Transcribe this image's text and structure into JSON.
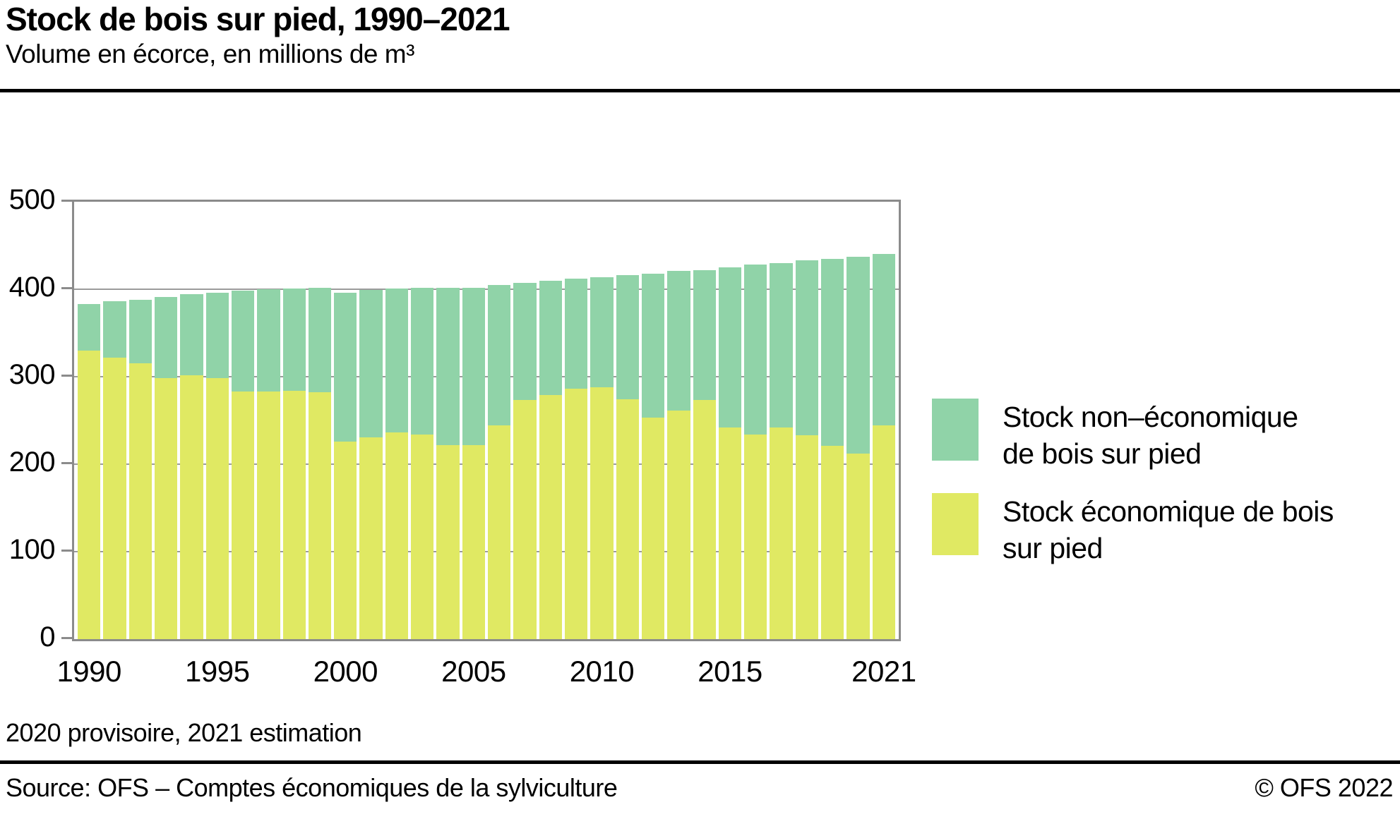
{
  "header": {
    "title": "Stock de bois sur pied, 1990–2021",
    "subtitle": "Volume en écorce, en millions de m³"
  },
  "chart_data": {
    "type": "bar",
    "stacked": true,
    "title": "Stock de bois sur pied, 1990–2021",
    "subtitle": "Volume en écorce, en millions de m³",
    "unit": "millions de m³",
    "ylim": [
      0,
      500
    ],
    "yticks": [
      0,
      100,
      200,
      300,
      400,
      500
    ],
    "xtick_years": [
      "1990",
      "1995",
      "2000",
      "2005",
      "2010",
      "2015",
      "2021"
    ],
    "grid": "horizontal",
    "legend_position": "right",
    "axis_color": "#8b8b8b",
    "grid_color": "#9b9b9b",
    "categories": [
      "1990",
      "1991",
      "1992",
      "1993",
      "1994",
      "1995",
      "1996",
      "1997",
      "1998",
      "1999",
      "2000",
      "2001",
      "2002",
      "2003",
      "2004",
      "2005",
      "2006",
      "2007",
      "2008",
      "2009",
      "2010",
      "2011",
      "2012",
      "2013",
      "2014",
      "2015",
      "2016",
      "2017",
      "2018",
      "2019",
      "2020",
      "2021"
    ],
    "series": [
      {
        "key": "non_economique",
        "name": "Stock non–économique de bois sur pied",
        "color": "#90d3a8",
        "stack_order": "top",
        "values": [
          53,
          64,
          73,
          93,
          92,
          98,
          115,
          117,
          117,
          120,
          170,
          168,
          165,
          168,
          180,
          180,
          161,
          134,
          131,
          126,
          126,
          142,
          165,
          160,
          149,
          183,
          194,
          188,
          200,
          214,
          225,
          196
        ]
      },
      {
        "key": "economique",
        "name": "Stock économique de bois sur pied",
        "color": "#e0e963",
        "stack_order": "bottom",
        "values": [
          330,
          322,
          315,
          298,
          302,
          298,
          283,
          283,
          284,
          282,
          226,
          231,
          236,
          234,
          222,
          222,
          244,
          273,
          279,
          286,
          288,
          274,
          253,
          261,
          273,
          242,
          234,
          242,
          233,
          221,
          212,
          244
        ]
      }
    ]
  },
  "footer": {
    "note": "2020 provisoire, 2021 estimation",
    "source": "Source: OFS – Comptes économiques de la sylviculture",
    "copyright": "© OFS 2022"
  }
}
